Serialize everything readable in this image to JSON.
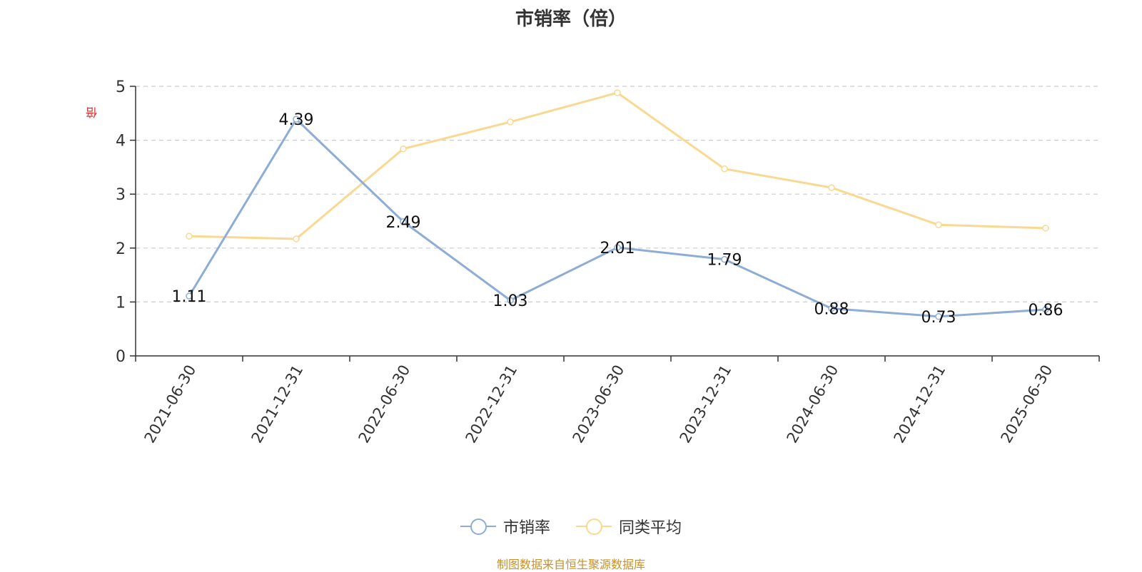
{
  "chart_data": {
    "type": "line",
    "title": "市销率（倍）",
    "unit_label": "倍",
    "categories": [
      "2021-06-30",
      "2021-12-31",
      "2022-06-30",
      "2022-12-31",
      "2023-06-30",
      "2023-12-31",
      "2024-06-30",
      "2024-12-31",
      "2025-06-30"
    ],
    "ylim": [
      0,
      5
    ],
    "yticks": [
      0,
      1,
      2,
      3,
      4,
      5
    ],
    "grid": "horizontal dashed",
    "legend_position": "bottom",
    "series": [
      {
        "name": "市销率",
        "color": "#8eadd6",
        "show_labels": true,
        "values": [
          1.11,
          4.39,
          2.49,
          1.03,
          2.01,
          1.79,
          0.88,
          0.73,
          0.86
        ]
      },
      {
        "name": "同类平均",
        "color": "#f9d992",
        "show_labels": false,
        "values": [
          2.22,
          2.17,
          3.84,
          4.34,
          4.88,
          3.47,
          3.12,
          2.43,
          2.37
        ]
      }
    ]
  },
  "source": "制图数据来自恒生聚源数据库"
}
